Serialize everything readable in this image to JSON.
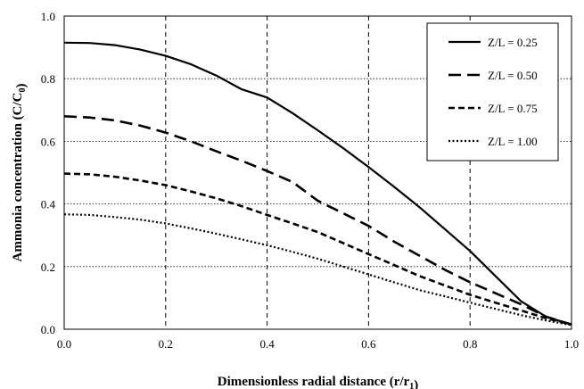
{
  "chart_data": {
    "type": "line",
    "xlabel": "Dimensionless radial distance (r/r₁)",
    "ylabel": "Ammonia concentration (C/C₀)",
    "xlim": [
      0,
      1
    ],
    "ylim": [
      0,
      1
    ],
    "x_ticks": [
      "0.0",
      "0.2",
      "0.4",
      "0.6",
      "0.8",
      "1.0"
    ],
    "y_ticks": [
      "0.0",
      "0.2",
      "0.4",
      "0.6",
      "0.8",
      "1.0"
    ],
    "grid": "x dashed vertical at 0.2 intervals, y dotted horizontal at 0.2 intervals",
    "legend_position": "top-right",
    "series": [
      {
        "name": "Z/L = 0.25",
        "style": "solid",
        "x": [
          0,
          0.05,
          0.1,
          0.15,
          0.2,
          0.25,
          0.3,
          0.35,
          0.4,
          0.45,
          0.5,
          0.55,
          0.6,
          0.65,
          0.7,
          0.75,
          0.8,
          0.85,
          0.9,
          0.95,
          1.0
        ],
        "y": [
          0.915,
          0.914,
          0.907,
          0.893,
          0.873,
          0.846,
          0.81,
          0.766,
          0.74,
          0.69,
          0.635,
          0.578,
          0.518,
          0.455,
          0.39,
          0.32,
          0.25,
          0.17,
          0.09,
          0.04,
          0.015
        ]
      },
      {
        "name": "Z/L = 0.50",
        "style": "dashed",
        "x": [
          0,
          0.05,
          0.1,
          0.15,
          0.2,
          0.25,
          0.3,
          0.35,
          0.4,
          0.45,
          0.5,
          0.55,
          0.6,
          0.65,
          0.7,
          0.75,
          0.8,
          0.85,
          0.9,
          0.95,
          1.0
        ],
        "y": [
          0.68,
          0.676,
          0.667,
          0.65,
          0.628,
          0.6,
          0.568,
          0.538,
          0.505,
          0.47,
          0.41,
          0.37,
          0.33,
          0.28,
          0.235,
          0.19,
          0.15,
          0.115,
          0.08,
          0.04,
          0.015
        ]
      },
      {
        "name": "Z/L = 0.75",
        "style": "short-dashed",
        "x": [
          0,
          0.05,
          0.1,
          0.15,
          0.2,
          0.25,
          0.3,
          0.35,
          0.4,
          0.45,
          0.5,
          0.55,
          0.6,
          0.65,
          0.7,
          0.75,
          0.8,
          0.85,
          0.9,
          0.95,
          1.0
        ],
        "y": [
          0.497,
          0.495,
          0.487,
          0.475,
          0.46,
          0.44,
          0.418,
          0.393,
          0.365,
          0.338,
          0.31,
          0.275,
          0.24,
          0.205,
          0.17,
          0.14,
          0.11,
          0.085,
          0.06,
          0.035,
          0.015
        ]
      },
      {
        "name": "Z/L = 1.00",
        "style": "dotted",
        "x": [
          0,
          0.05,
          0.1,
          0.15,
          0.2,
          0.25,
          0.3,
          0.35,
          0.4,
          0.45,
          0.5,
          0.55,
          0.6,
          0.65,
          0.7,
          0.75,
          0.8,
          0.85,
          0.9,
          0.95,
          1.0
        ],
        "y": [
          0.367,
          0.365,
          0.358,
          0.35,
          0.338,
          0.322,
          0.305,
          0.287,
          0.268,
          0.247,
          0.225,
          0.2,
          0.175,
          0.15,
          0.125,
          0.105,
          0.085,
          0.065,
          0.045,
          0.028,
          0.013
        ]
      }
    ]
  }
}
